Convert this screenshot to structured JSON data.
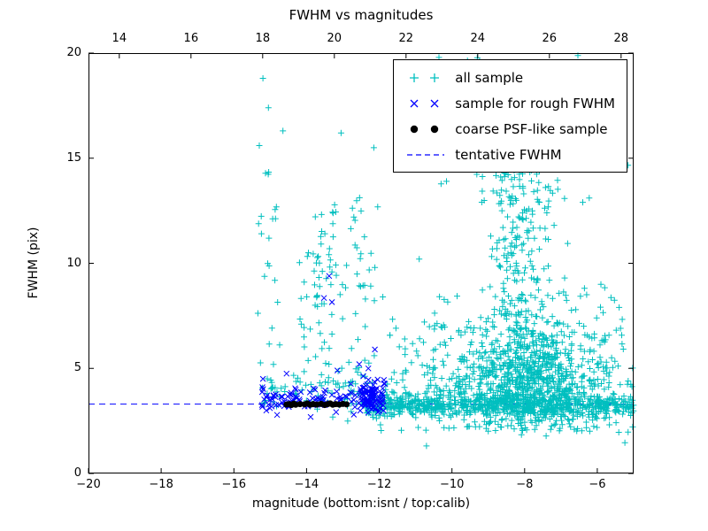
{
  "colors": {
    "all_sample": "#00bfbf",
    "rough_fwhm": "#0000ff",
    "psf_like": "#000000",
    "tentative": "#0000ff",
    "axis": "#000000",
    "background": "#ffffff"
  },
  "chart_data": {
    "type": "scatter",
    "title": "FWHM vs magnitudes",
    "xlabel": "magnitude (bottom:isnt / top:calib)",
    "ylabel": "FWHM (pix)",
    "x_range": [
      -20,
      -5
    ],
    "top_x_range": [
      13.14,
      28.35
    ],
    "y_range": [
      0,
      20
    ],
    "grid": false,
    "x_ticks": {
      "values": [
        -20,
        -18,
        -16,
        -14,
        -12,
        -10,
        -8,
        -6
      ],
      "labels": [
        "−20",
        "−18",
        "−16",
        "−14",
        "−12",
        "−10",
        "−8",
        "−6"
      ]
    },
    "top_x_ticks": {
      "values": [
        14,
        16,
        18,
        20,
        22,
        24,
        26,
        28
      ],
      "labels": [
        "14",
        "16",
        "18",
        "20",
        "22",
        "24",
        "26",
        "28"
      ]
    },
    "y_ticks": {
      "values": [
        0,
        5,
        10,
        15,
        20
      ],
      "labels": [
        "0",
        "5",
        "10",
        "15",
        "20"
      ]
    },
    "legend": {
      "position": "upper right",
      "entries": [
        {
          "label": "all sample",
          "marker": "plus",
          "color": "#00bfbf"
        },
        {
          "label": "sample for rough FWHM",
          "marker": "x",
          "color": "#0000ff"
        },
        {
          "label": "coarse PSF-like sample",
          "marker": "dot",
          "color": "#000000"
        },
        {
          "label": "tentative FWHM",
          "marker": "dashed-line",
          "color": "#0000ff"
        }
      ]
    },
    "tentative_fwhm": 3.3,
    "seed": 42,
    "series": [
      {
        "name": "all sample",
        "marker": "plus",
        "color": "#00bfbf",
        "clusters": [
          {
            "type": "hband",
            "n": 650,
            "x0": -12.45,
            "x1": -5.0,
            "cy": 3.25,
            "sy": 0.25
          },
          {
            "type": "hband",
            "n": 180,
            "x0": -12.4,
            "x1": -5.0,
            "cy": 3.3,
            "sy": 0.8
          },
          {
            "type": "gauss",
            "n": 850,
            "cx": -7.9,
            "cy": 4.4,
            "sx": 1.1,
            "sy": 1.2,
            "ymin": 2.0
          },
          {
            "type": "vband",
            "n": 240,
            "cx": -8.1,
            "sx": 0.5,
            "y0": 6,
            "y1": 15
          },
          {
            "type": "vband",
            "n": 80,
            "cx": -8.0,
            "sx": 1.1,
            "y0": 13,
            "y1": 20
          },
          {
            "type": "uniform",
            "n": 90,
            "x0": -10.8,
            "x1": -5.2,
            "y0": 5,
            "y1": 9
          },
          {
            "type": "uniform",
            "n": 40,
            "x0": -11.8,
            "x1": -9.8,
            "y0": 3.5,
            "y1": 7.5
          },
          {
            "type": "hband",
            "n": 70,
            "x0": -15.2,
            "x1": -12.5,
            "cy": 3.8,
            "sy": 0.45
          },
          {
            "type": "vband",
            "n": 26,
            "cx": -15.05,
            "sx": 0.15,
            "y0": 3.5,
            "y1": 14.5
          },
          {
            "type": "vband",
            "n": 46,
            "cx": -13.6,
            "sx": 0.22,
            "y0": 3.8,
            "y1": 13.0
          },
          {
            "type": "vband",
            "n": 40,
            "cx": -12.45,
            "sx": 0.22,
            "y0": 3.8,
            "y1": 13.2
          },
          {
            "type": "uniform",
            "n": 24,
            "x0": -14.3,
            "x1": -12.9,
            "y0": 4,
            "y1": 10.5
          },
          {
            "type": "points",
            "pts": [
              [
                -15.2,
                18.8
              ],
              [
                -15.05,
                17.4
              ],
              [
                -15.3,
                15.6
              ],
              [
                -14.65,
                16.3
              ],
              [
                -13.05,
                16.2
              ],
              [
                -12.15,
                15.5
              ],
              [
                -11.9,
                8.4
              ],
              [
                -12.9,
                9.9
              ],
              [
                -10.4,
                16.8
              ],
              [
                -10.15,
                13.9
              ],
              [
                -9.6,
                16.9
              ],
              [
                -6.4,
                12.9
              ],
              [
                -5.9,
                9.0
              ],
              [
                -6.9,
                9.3
              ],
              [
                -5.4,
                7.9
              ],
              [
                -12.7,
                12.2
              ],
              [
                -13.95,
                10.5
              ],
              [
                -10.9,
                10.2
              ],
              [
                -11.3,
                6.4
              ],
              [
                -5.15,
                4.4
              ]
            ]
          }
        ]
      },
      {
        "name": "sample for rough FWHM",
        "marker": "x",
        "color": "#0000ff",
        "clusters": [
          {
            "type": "hband",
            "n": 120,
            "x0": -15.25,
            "x1": -11.9,
            "cy": 3.55,
            "sy": 0.33
          },
          {
            "type": "hband",
            "n": 70,
            "x0": -12.5,
            "x1": -11.85,
            "cy": 3.6,
            "sy": 0.45
          },
          {
            "type": "points",
            "pts": [
              [
                -13.38,
                9.4
              ],
              [
                -13.52,
                8.35
              ],
              [
                -13.3,
                8.15
              ],
              [
                -12.12,
                5.9
              ],
              [
                -14.55,
                4.75
              ],
              [
                -13.15,
                4.9
              ],
              [
                -12.3,
                5.0
              ],
              [
                -15.2,
                4.5
              ],
              [
                -12.55,
                5.2
              ]
            ]
          }
        ]
      },
      {
        "name": "coarse PSF-like sample",
        "marker": "dot",
        "color": "#000000",
        "clusters": [
          {
            "type": "points",
            "pts": [
              [
                -14.55,
                3.28
              ],
              [
                -14.48,
                3.3
              ],
              [
                -14.42,
                3.26
              ],
              [
                -14.35,
                3.32
              ],
              [
                -14.3,
                3.27
              ],
              [
                -14.18,
                3.3
              ],
              [
                -14.05,
                3.29
              ],
              [
                -13.98,
                3.33
              ],
              [
                -13.9,
                3.27
              ],
              [
                -13.82,
                3.3
              ],
              [
                -13.72,
                3.28
              ],
              [
                -13.6,
                3.31
              ],
              [
                -13.5,
                3.26
              ],
              [
                -13.42,
                3.3
              ],
              [
                -13.35,
                3.33
              ],
              [
                -13.28,
                3.27
              ],
              [
                -13.2,
                3.3
              ],
              [
                -13.1,
                3.28
              ],
              [
                -13.0,
                3.31
              ],
              [
                -12.9,
                3.29
              ]
            ]
          }
        ]
      },
      {
        "name": "tentative FWHM",
        "marker": "dashed-line",
        "color": "#0000ff",
        "y": 3.3
      }
    ]
  }
}
